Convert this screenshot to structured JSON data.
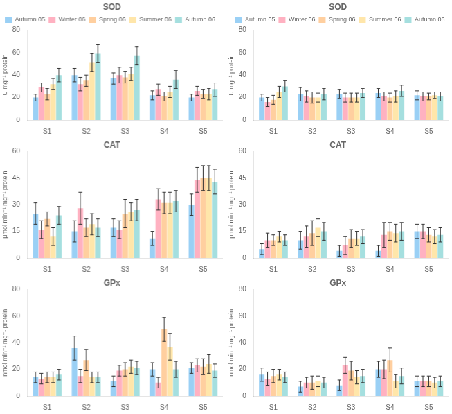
{
  "chart_data": [
    {
      "type": "bar",
      "title": "SOD",
      "ylabel": "U mg⁻¹ protein",
      "categories": [
        "S1",
        "S2",
        "S3",
        "S4",
        "S5"
      ],
      "series": [
        {
          "name": "Autumn 05",
          "values": [
            20,
            40,
            37,
            22,
            20
          ],
          "errors": [
            3,
            6,
            5,
            4,
            3
          ]
        },
        {
          "name": "Winter 06",
          "values": [
            29,
            32,
            40,
            27,
            26
          ],
          "errors": [
            4,
            6,
            7,
            5,
            4
          ]
        },
        {
          "name": "Spring 06",
          "values": [
            23,
            35,
            38,
            21,
            23
          ],
          "errors": [
            5,
            5,
            5,
            4,
            4
          ]
        },
        {
          "name": "Summer 06",
          "values": [
            32,
            51,
            41,
            25,
            23
          ],
          "errors": [
            5,
            8,
            6,
            5,
            5
          ]
        },
        {
          "name": "Autumn 06",
          "values": [
            40,
            59,
            57,
            36,
            27
          ],
          "errors": [
            6,
            8,
            8,
            8,
            6
          ]
        }
      ],
      "ylim": [
        0,
        80
      ],
      "yticks": [
        0,
        20,
        40,
        60,
        80
      ],
      "grid": false,
      "legend": "upper left"
    },
    {
      "type": "bar",
      "title": "SOD",
      "ylabel": "U mg⁻¹ protein",
      "categories": [
        "S1",
        "S2",
        "S3",
        "S4",
        "S5"
      ],
      "series": [
        {
          "name": "Autumn 05",
          "values": [
            20,
            23,
            23,
            24,
            22
          ],
          "errors": [
            3,
            6,
            4,
            4,
            4
          ]
        },
        {
          "name": "Winter 06",
          "values": [
            16,
            21,
            20,
            21,
            21
          ],
          "errors": [
            4,
            5,
            4,
            4,
            4
          ]
        },
        {
          "name": "Spring 06",
          "values": [
            18,
            20,
            20,
            20,
            21
          ],
          "errors": [
            4,
            5,
            4,
            4,
            3
          ]
        },
        {
          "name": "Summer 06",
          "values": [
            25,
            20,
            20,
            21,
            22
          ],
          "errors": [
            5,
            4,
            4,
            5,
            3
          ]
        },
        {
          "name": "Autumn 06",
          "values": [
            30,
            23,
            24,
            26,
            21
          ],
          "errors": [
            5,
            5,
            4,
            5,
            4
          ]
        }
      ],
      "ylim": [
        0,
        80
      ],
      "yticks": [
        0,
        20,
        40,
        60,
        80
      ],
      "grid": false,
      "legend": "upper right"
    },
    {
      "type": "bar",
      "title": "CAT",
      "ylabel": "μmol min⁻¹ mg⁻¹ protein",
      "categories": [
        "S1",
        "S2",
        "S3",
        "S4",
        "S5"
      ],
      "series": [
        {
          "name": "Autumn 05",
          "values": [
            25,
            15,
            17,
            11,
            30
          ],
          "errors": [
            6,
            6,
            5,
            4,
            6
          ]
        },
        {
          "name": "Winter 06",
          "values": [
            16,
            28,
            16,
            33,
            44
          ],
          "errors": [
            5,
            9,
            5,
            6,
            7
          ]
        },
        {
          "name": "Spring 06",
          "values": [
            22,
            17,
            25,
            31,
            45
          ],
          "errors": [
            4,
            5,
            8,
            6,
            7
          ]
        },
        {
          "name": "Summer 06",
          "values": [
            12,
            19,
            26,
            31,
            45
          ],
          "errors": [
            5,
            6,
            5,
            6,
            7
          ]
        },
        {
          "name": "Autumn 06",
          "values": [
            24,
            17,
            27,
            32,
            43
          ],
          "errors": [
            5,
            5,
            6,
            6,
            7
          ]
        }
      ],
      "ylim": [
        0,
        60
      ],
      "yticks": [
        0,
        15,
        30,
        45,
        60
      ],
      "grid": false
    },
    {
      "type": "bar",
      "title": "CAT",
      "ylabel": "μmol min⁻¹ mg⁻¹ protein",
      "categories": [
        "S1",
        "S2",
        "S3",
        "S4",
        "S5"
      ],
      "series": [
        {
          "name": "Autumn 05",
          "values": [
            5,
            10,
            4,
            4,
            15
          ],
          "errors": [
            3,
            5,
            3,
            3,
            4
          ]
        },
        {
          "name": "Winter 06",
          "values": [
            10,
            12,
            7,
            13,
            15
          ],
          "errors": [
            4,
            6,
            5,
            7,
            4
          ]
        },
        {
          "name": "Spring 06",
          "values": [
            10,
            14,
            11,
            15,
            13
          ],
          "errors": [
            3,
            7,
            5,
            5,
            4
          ]
        },
        {
          "name": "Summer 06",
          "values": [
            12,
            17,
            11,
            14,
            12
          ],
          "errors": [
            3,
            5,
            4,
            5,
            4
          ]
        },
        {
          "name": "Autumn 06",
          "values": [
            10,
            15,
            12,
            15,
            13
          ],
          "errors": [
            3,
            5,
            4,
            5,
            4
          ]
        }
      ],
      "ylim": [
        0,
        60
      ],
      "yticks": [
        0,
        15,
        30,
        45,
        60
      ],
      "grid": false
    },
    {
      "type": "bar",
      "title": "GPx",
      "ylabel": "nmol min⁻¹ mg⁻¹ protein",
      "categories": [
        "S1",
        "S2",
        "S3",
        "S4",
        "S5"
      ],
      "series": [
        {
          "name": "Autumn 05",
          "values": [
            14,
            36,
            11,
            20,
            21
          ],
          "errors": [
            4,
            9,
            4,
            5,
            4
          ]
        },
        {
          "name": "Winter 06",
          "values": [
            13,
            15,
            19,
            10,
            23
          ],
          "errors": [
            4,
            5,
            4,
            4,
            5
          ]
        },
        {
          "name": "Spring 06",
          "values": [
            14,
            27,
            20,
            50,
            22
          ],
          "errors": [
            4,
            8,
            5,
            9,
            6
          ]
        },
        {
          "name": "Summer 06",
          "values": [
            14,
            14,
            22,
            37,
            24
          ],
          "errors": [
            4,
            4,
            5,
            10,
            7
          ]
        },
        {
          "name": "Autumn 06",
          "values": [
            16,
            14,
            21,
            20,
            19
          ],
          "errors": [
            4,
            4,
            5,
            6,
            5
          ]
        }
      ],
      "ylim": [
        0,
        80
      ],
      "yticks": [
        0,
        20,
        40,
        60,
        80
      ],
      "grid": false
    },
    {
      "type": "bar",
      "title": "GPx",
      "ylabel": "nmol min⁻¹ mg⁻¹ protein",
      "categories": [
        "S1",
        "S2",
        "S3",
        "S4",
        "S5"
      ],
      "series": [
        {
          "name": "Autumn 05",
          "values": [
            16,
            7,
            8,
            20,
            11
          ],
          "errors": [
            5,
            4,
            4,
            6,
            4
          ]
        },
        {
          "name": "Winter 06",
          "values": [
            13,
            10,
            23,
            20,
            11
          ],
          "errors": [
            5,
            4,
            6,
            7,
            4
          ]
        },
        {
          "name": "Spring 06",
          "values": [
            15,
            10,
            19,
            27,
            11
          ],
          "errors": [
            5,
            5,
            7,
            9,
            4
          ]
        },
        {
          "name": "Summer 06",
          "values": [
            16,
            11,
            14,
            11,
            10
          ],
          "errors": [
            4,
            4,
            5,
            5,
            4
          ]
        },
        {
          "name": "Autumn 06",
          "values": [
            14,
            10,
            15,
            15,
            11
          ],
          "errors": [
            4,
            4,
            5,
            6,
            4
          ]
        }
      ],
      "ylim": [
        0,
        80
      ],
      "yticks": [
        0,
        20,
        40,
        60,
        80
      ],
      "grid": false
    }
  ]
}
